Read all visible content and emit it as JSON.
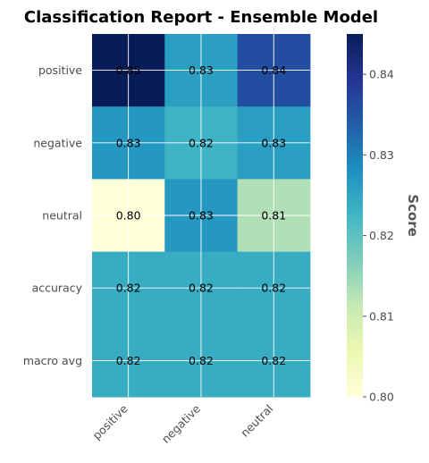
{
  "chart_data": {
    "type": "heatmap",
    "title": "Classification Report - Ensemble Model",
    "x_categories": [
      "positive",
      "negative",
      "neutral"
    ],
    "y_categories": [
      "positive",
      "negative",
      "neutral",
      "accuracy",
      "macro avg"
    ],
    "values": [
      [
        0.845,
        0.826,
        0.836
      ],
      [
        0.827,
        0.823,
        0.826
      ],
      [
        0.8,
        0.827,
        0.813
      ],
      [
        0.824,
        0.824,
        0.824
      ],
      [
        0.824,
        0.824,
        0.824
      ]
    ],
    "labels": [
      [
        "0.85",
        "0.83",
        "0.84"
      ],
      [
        "0.83",
        "0.82",
        "0.83"
      ],
      [
        "0.80",
        "0.83",
        "0.81"
      ],
      [
        "0.82",
        "0.82",
        "0.82"
      ],
      [
        "0.82",
        "0.82",
        "0.82"
      ]
    ],
    "colormap": "YlGnBu",
    "colorbar": {
      "label": "Score",
      "range": [
        0.8,
        0.845
      ],
      "ticks": [
        0.8,
        0.81,
        0.82,
        0.83,
        0.84
      ],
      "tick_labels": [
        "0.80",
        "0.81",
        "0.82",
        "0.83",
        "0.84"
      ]
    },
    "grid": true
  }
}
